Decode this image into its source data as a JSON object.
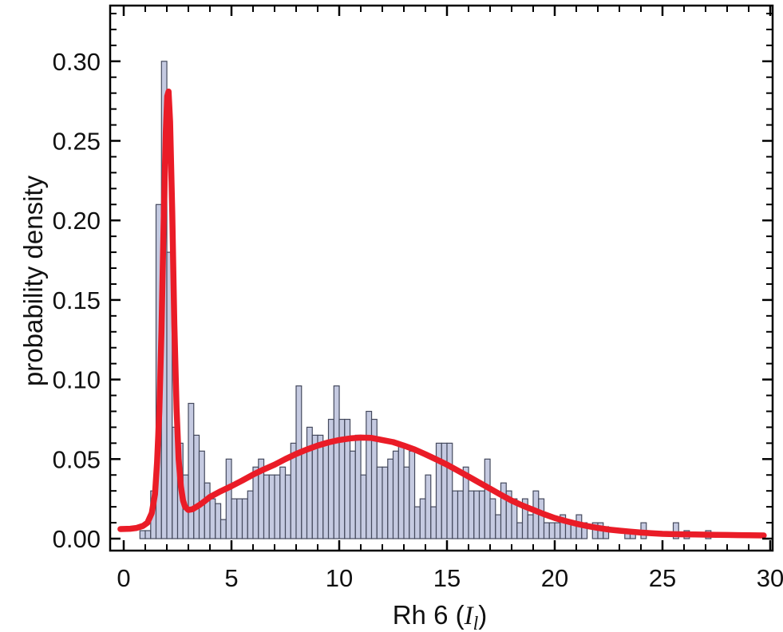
{
  "chart_data": {
    "type": "bar",
    "subtype": "histogram_with_fit_curve",
    "title": "",
    "ylabel": "probability density",
    "xlabel": "Rh 6 (I_l)",
    "xlabel_prefix": "Rh 6 (",
    "xlabel_var": "I",
    "xlabel_sub": "l",
    "xlabel_suffix": ")",
    "xlim": [
      -0.63,
      30.11
    ],
    "ylim": [
      -0.0075,
      0.335
    ],
    "grid": false,
    "legend": "none",
    "frame": true,
    "bin_width": 0.25,
    "x_ticks": [
      [
        0,
        "0"
      ],
      [
        5,
        "5"
      ],
      [
        10,
        "10"
      ],
      [
        15,
        "15"
      ],
      [
        20,
        "20"
      ],
      [
        25,
        "25"
      ],
      [
        30,
        "30"
      ]
    ],
    "y_ticks": [
      [
        0,
        "0.00"
      ],
      [
        0.05,
        "0.05"
      ],
      [
        0.1,
        "0.10"
      ],
      [
        0.15,
        "0.15"
      ],
      [
        0.2,
        "0.20"
      ],
      [
        0.25,
        "0.25"
      ],
      [
        0.3,
        "0.30"
      ]
    ],
    "x_minor_step": 1,
    "y_minor_step": 0.01,
    "colors": {
      "bar_fill": "#c5cae1",
      "bar_stroke": "#454a5e",
      "curve": "#ea1c27",
      "frame": "#000000",
      "text": "#111111"
    },
    "bars": [
      [
        0.75,
        0.005
      ],
      [
        1.0,
        0.005
      ],
      [
        1.25,
        0.03
      ],
      [
        1.5,
        0.21
      ],
      [
        1.75,
        0.3
      ],
      [
        2.0,
        0.18
      ],
      [
        2.25,
        0.07
      ],
      [
        2.5,
        0.06
      ],
      [
        2.75,
        0.04
      ],
      [
        3.0,
        0.085
      ],
      [
        3.25,
        0.065
      ],
      [
        3.5,
        0.055
      ],
      [
        3.75,
        0.035
      ],
      [
        4.0,
        0.025
      ],
      [
        4.25,
        0.022
      ],
      [
        4.5,
        0.012
      ],
      [
        4.75,
        0.05
      ],
      [
        5.0,
        0.025
      ],
      [
        5.25,
        0.025
      ],
      [
        5.5,
        0.025
      ],
      [
        5.75,
        0.03
      ],
      [
        6.0,
        0.045
      ],
      [
        6.25,
        0.05
      ],
      [
        6.5,
        0.04
      ],
      [
        6.75,
        0.04
      ],
      [
        7.0,
        0.04
      ],
      [
        7.25,
        0.045
      ],
      [
        7.5,
        0.04
      ],
      [
        7.75,
        0.06
      ],
      [
        8.0,
        0.096
      ],
      [
        8.25,
        0.055
      ],
      [
        8.5,
        0.07
      ],
      [
        8.75,
        0.065
      ],
      [
        9.0,
        0.065
      ],
      [
        9.25,
        0.06
      ],
      [
        9.5,
        0.075
      ],
      [
        9.75,
        0.096
      ],
      [
        10.0,
        0.075
      ],
      [
        10.25,
        0.075
      ],
      [
        10.5,
        0.055
      ],
      [
        10.75,
        0.065
      ],
      [
        11.0,
        0.04
      ],
      [
        11.25,
        0.08
      ],
      [
        11.5,
        0.075
      ],
      [
        11.75,
        0.045
      ],
      [
        12.0,
        0.045
      ],
      [
        12.25,
        0.05
      ],
      [
        12.5,
        0.055
      ],
      [
        12.75,
        0.06
      ],
      [
        13.0,
        0.045
      ],
      [
        13.25,
        0.055
      ],
      [
        13.5,
        0.02
      ],
      [
        13.75,
        0.025
      ],
      [
        14.0,
        0.04
      ],
      [
        14.25,
        0.02
      ],
      [
        14.5,
        0.06
      ],
      [
        14.75,
        0.06
      ],
      [
        15.0,
        0.06
      ],
      [
        15.25,
        0.03
      ],
      [
        15.5,
        0.03
      ],
      [
        15.75,
        0.045
      ],
      [
        16.0,
        0.03
      ],
      [
        16.25,
        0.03
      ],
      [
        16.5,
        0.03
      ],
      [
        16.75,
        0.05
      ],
      [
        17.0,
        0.025
      ],
      [
        17.25,
        0.015
      ],
      [
        17.5,
        0.035
      ],
      [
        17.75,
        0.03
      ],
      [
        18.0,
        0.025
      ],
      [
        18.25,
        0.01
      ],
      [
        18.5,
        0.025
      ],
      [
        18.75,
        0.015
      ],
      [
        19.0,
        0.03
      ],
      [
        19.25,
        0.025
      ],
      [
        19.5,
        0.01
      ],
      [
        19.75,
        0.01
      ],
      [
        20.0,
        0.01
      ],
      [
        20.25,
        0.015
      ],
      [
        20.5,
        0.01
      ],
      [
        20.75,
        0.01
      ],
      [
        21.0,
        0.015
      ],
      [
        21.25,
        0.01
      ],
      [
        21.75,
        0.01
      ],
      [
        22.0,
        0.01
      ],
      [
        22.25,
        0.0075
      ],
      [
        23.25,
        0.005
      ],
      [
        23.5,
        0.005
      ],
      [
        24.0,
        0.01
      ],
      [
        25.5,
        0.01
      ],
      [
        26.0,
        0.005
      ],
      [
        27.0,
        0.005
      ]
    ],
    "fit_curve": [
      [
        -0.15,
        0.006
      ],
      [
        0.3,
        0.0062
      ],
      [
        0.6,
        0.0067
      ],
      [
        0.9,
        0.008
      ],
      [
        1.1,
        0.01
      ],
      [
        1.3,
        0.016
      ],
      [
        1.45,
        0.028
      ],
      [
        1.55,
        0.048
      ],
      [
        1.65,
        0.08
      ],
      [
        1.75,
        0.13
      ],
      [
        1.85,
        0.195
      ],
      [
        1.95,
        0.255
      ],
      [
        2.02,
        0.278
      ],
      [
        2.08,
        0.281
      ],
      [
        2.15,
        0.262
      ],
      [
        2.25,
        0.205
      ],
      [
        2.35,
        0.135
      ],
      [
        2.45,
        0.082
      ],
      [
        2.55,
        0.05
      ],
      [
        2.65,
        0.033
      ],
      [
        2.75,
        0.024
      ],
      [
        2.85,
        0.02
      ],
      [
        3.0,
        0.018
      ],
      [
        3.2,
        0.0185
      ],
      [
        3.5,
        0.021
      ],
      [
        3.75,
        0.0235
      ],
      [
        4.0,
        0.0262
      ],
      [
        4.5,
        0.0298
      ],
      [
        5.0,
        0.033
      ],
      [
        5.5,
        0.0365
      ],
      [
        6.0,
        0.0402
      ],
      [
        6.5,
        0.0435
      ],
      [
        7.0,
        0.0465
      ],
      [
        7.5,
        0.05
      ],
      [
        8.0,
        0.0532
      ],
      [
        8.5,
        0.056
      ],
      [
        9.0,
        0.0585
      ],
      [
        9.5,
        0.0605
      ],
      [
        10.0,
        0.062
      ],
      [
        10.5,
        0.063
      ],
      [
        11.0,
        0.0635
      ],
      [
        11.5,
        0.0633
      ],
      [
        12.0,
        0.062
      ],
      [
        12.5,
        0.0607
      ],
      [
        13.0,
        0.0585
      ],
      [
        13.5,
        0.056
      ],
      [
        14.0,
        0.053
      ],
      [
        14.5,
        0.0498
      ],
      [
        15.0,
        0.0465
      ],
      [
        15.5,
        0.0428
      ],
      [
        16.0,
        0.039
      ],
      [
        16.5,
        0.0352
      ],
      [
        17.0,
        0.0314
      ],
      [
        17.5,
        0.0276
      ],
      [
        18.0,
        0.0239
      ],
      [
        18.5,
        0.0208
      ],
      [
        19.0,
        0.0181
      ],
      [
        19.5,
        0.0154
      ],
      [
        20.0,
        0.013
      ],
      [
        20.5,
        0.0111
      ],
      [
        21.0,
        0.0094
      ],
      [
        21.5,
        0.0079
      ],
      [
        22.0,
        0.0067
      ],
      [
        22.5,
        0.0057
      ],
      [
        23.0,
        0.005
      ],
      [
        23.5,
        0.0044
      ],
      [
        24.0,
        0.0038
      ],
      [
        24.5,
        0.0034
      ],
      [
        25.0,
        0.003
      ],
      [
        25.5,
        0.0028
      ],
      [
        26.0,
        0.0027
      ],
      [
        26.5,
        0.0026
      ],
      [
        27.0,
        0.0025
      ],
      [
        27.5,
        0.0024
      ],
      [
        28.0,
        0.0023
      ],
      [
        28.5,
        0.0022
      ],
      [
        29.0,
        0.0021
      ],
      [
        29.7,
        0.002
      ]
    ]
  }
}
